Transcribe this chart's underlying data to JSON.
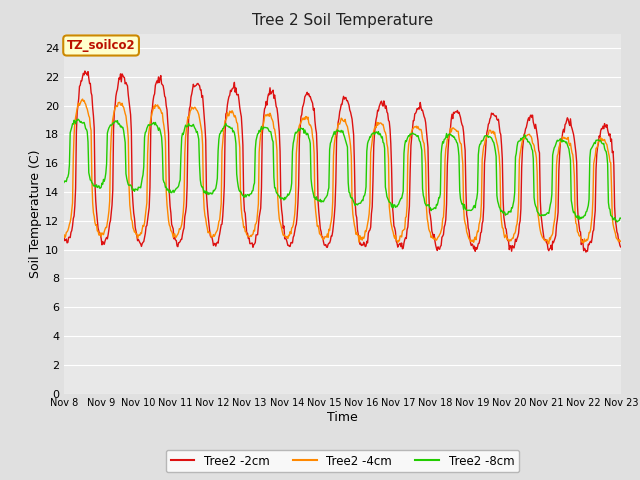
{
  "title": "Tree 2 Soil Temperature",
  "xlabel": "Time",
  "ylabel": "Soil Temperature (C)",
  "ylim": [
    0,
    25
  ],
  "yticks": [
    0,
    2,
    4,
    6,
    8,
    10,
    12,
    14,
    16,
    18,
    20,
    22,
    24
  ],
  "annotation_text": "TZ_soilco2",
  "annotation_color": "#bb1100",
  "annotation_bg": "#ffffcc",
  "annotation_border": "#cc8800",
  "color_2cm": "#dd1111",
  "color_4cm": "#ff8800",
  "color_8cm": "#22cc00",
  "lw": 1.0,
  "xtick_labels": [
    "Nov 8",
    "Nov 9",
    "Nov 10",
    "Nov 11",
    "Nov 12",
    "Nov 13",
    "Nov 14",
    "Nov 15",
    "Nov 16",
    "Nov 17",
    "Nov 18",
    "Nov 19",
    "Nov 20",
    "Nov 21",
    "Nov 22",
    "Nov 23"
  ],
  "bg_color": "#e0e0e0",
  "plot_bg": "#e8e8e8",
  "grid_color": "#ffffff",
  "n_days": 15,
  "ppd": 48
}
